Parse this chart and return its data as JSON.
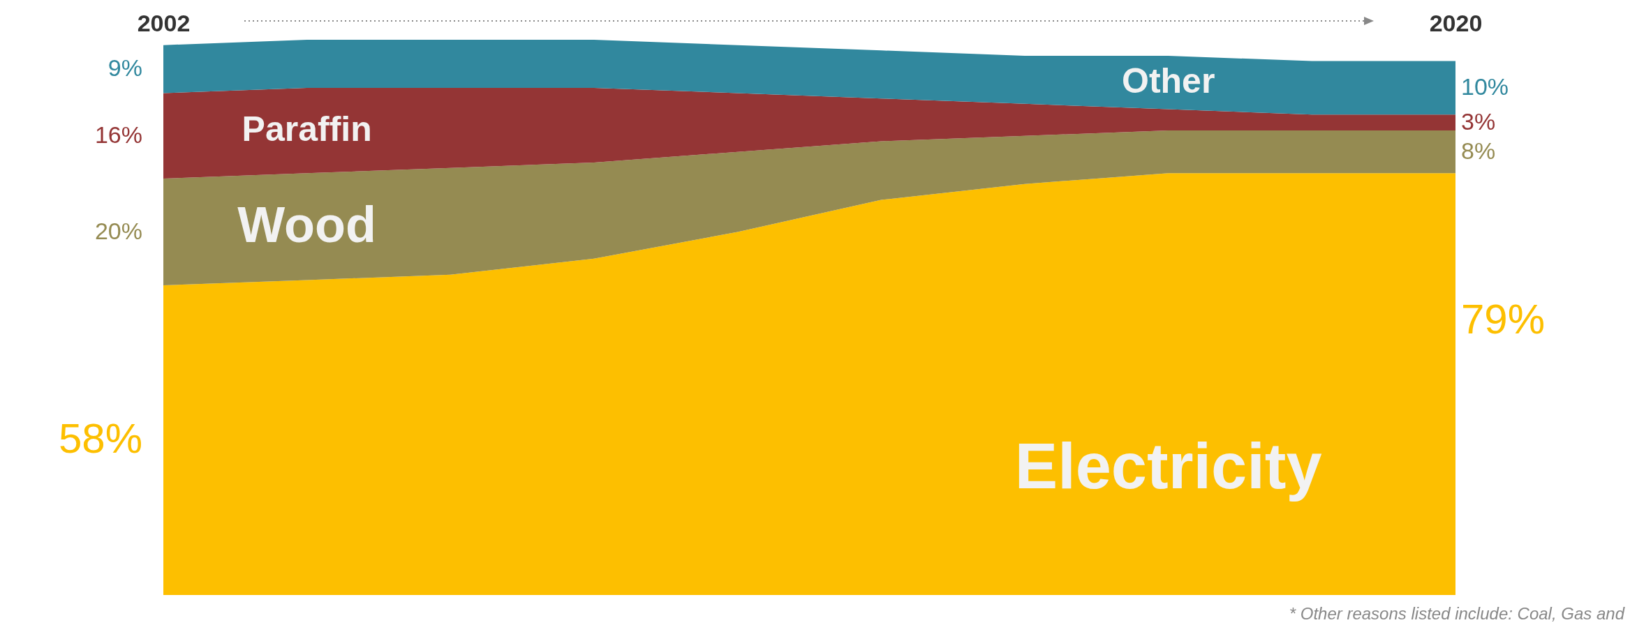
{
  "chart_data": {
    "type": "area",
    "stacked": true,
    "x": [
      2002,
      2004,
      2006,
      2008,
      2010,
      2012,
      2014,
      2016,
      2018,
      2020
    ],
    "xlim": [
      2002,
      2020
    ],
    "xticks": [
      2002,
      2020
    ],
    "grid": false,
    "series": [
      {
        "name": "Electricity",
        "color": "#fdbf00",
        "values": [
          58,
          59,
          60,
          63,
          68,
          74,
          77,
          79,
          79,
          79
        ],
        "value_labels": [
          "58%",
          null,
          null,
          null,
          null,
          null,
          null,
          null,
          null,
          "79%"
        ]
      },
      {
        "name": "Wood",
        "color": "#958b52",
        "values": [
          20,
          20,
          20,
          18,
          15,
          11,
          9,
          8,
          8,
          8
        ],
        "value_labels": [
          "20%",
          null,
          null,
          null,
          null,
          null,
          null,
          null,
          null,
          "8%"
        ]
      },
      {
        "name": "Paraffin",
        "color": "#943535",
        "values": [
          16,
          16,
          15,
          14,
          11,
          8,
          6,
          4,
          3,
          3
        ],
        "value_labels": [
          "16%",
          null,
          null,
          null,
          null,
          null,
          null,
          null,
          null,
          "3%"
        ]
      },
      {
        "name": "Other",
        "color": "#31889e",
        "values": [
          9,
          9,
          9,
          9,
          9,
          9,
          9,
          10,
          10,
          10
        ],
        "value_labels": [
          "9%",
          null,
          null,
          null,
          null,
          null,
          null,
          null,
          null,
          "10%"
        ]
      }
    ],
    "annotations": [
      "* Other reasons listed include: Coal, Gas and"
    ]
  }
}
